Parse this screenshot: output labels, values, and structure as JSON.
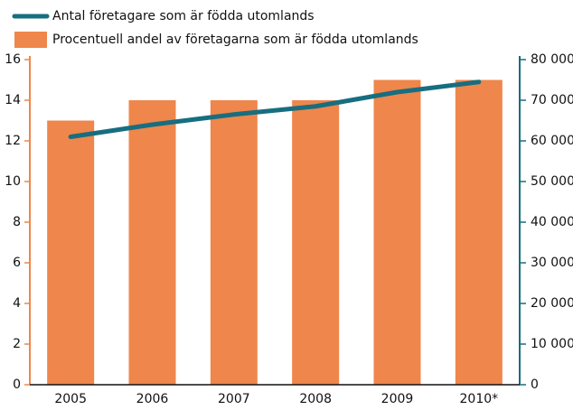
{
  "chart_data": {
    "type": "bar",
    "categories": [
      "2005",
      "2006",
      "2007",
      "2008",
      "2009",
      "2010*"
    ],
    "series": [
      {
        "name": "Procentuell andel av företagarna som är födda utomlands",
        "type": "bar",
        "color": "#ef864b",
        "values": [
          13,
          14,
          14,
          14,
          15,
          15
        ]
      },
      {
        "name": "Antal företagare som är födda utomlands",
        "type": "line",
        "axis": "y2",
        "color": "#176e80",
        "values": [
          61000,
          64000,
          66500,
          68500,
          72000,
          74500
        ]
      }
    ],
    "ylim": [
      0,
      16
    ],
    "yticks": [
      0,
      2,
      4,
      6,
      8,
      10,
      12,
      14,
      16
    ],
    "y2lim": [
      0,
      80000
    ],
    "y2ticks": [
      0,
      {
        "value": 10000,
        "label": "10 000"
      },
      {
        "value": 20000,
        "label": "20 000"
      },
      {
        "value": 30000,
        "label": "30 000"
      },
      {
        "value": 40000,
        "label": "40 000"
      },
      {
        "value": 50000,
        "label": "50 000"
      },
      {
        "value": 60000,
        "label": "60 000"
      },
      {
        "value": 70000,
        "label": "70 000"
      },
      {
        "value": 80000,
        "label": "80 000"
      }
    ],
    "grid": false
  }
}
